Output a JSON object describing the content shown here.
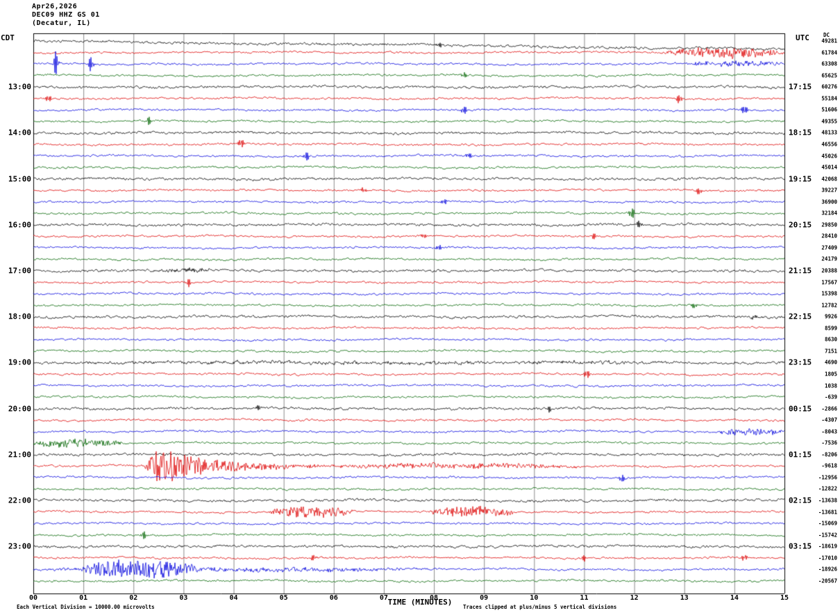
{
  "header": {
    "date": "Apr26,2026",
    "station": "DEC09 HHZ GS 01",
    "location": "(Decatur, IL)"
  },
  "axis": {
    "left_tz": "CDT",
    "right_tz": "UTC",
    "dc_header": "DC",
    "x_label": "TIME (MINUTES)"
  },
  "footer": {
    "left": "Each Vertical Division = 10000.00 microvolts",
    "right": "Traces clipped at plus/minus 5 vertical divisions"
  },
  "chart_data": {
    "type": "line",
    "title": "Helicorder seismogram DEC09 HHZ GS 01 (Decatur, IL)",
    "x_range_minutes": [
      0,
      15
    ],
    "minutes_per_row": 15,
    "rows": 48,
    "trace_colors_cycle": [
      "#000000",
      "#dd0000",
      "#0000dd",
      "#006400"
    ],
    "x_ticks": [
      "00",
      "01",
      "02",
      "03",
      "04",
      "05",
      "06",
      "07",
      "08",
      "09",
      "10",
      "11",
      "12",
      "13",
      "14",
      "15"
    ],
    "left_time_labels": [
      {
        "row": 4,
        "label": "13:00"
      },
      {
        "row": 8,
        "label": "14:00"
      },
      {
        "row": 12,
        "label": "15:00"
      },
      {
        "row": 16,
        "label": "16:00"
      },
      {
        "row": 20,
        "label": "17:00"
      },
      {
        "row": 24,
        "label": "18:00"
      },
      {
        "row": 28,
        "label": "19:00"
      },
      {
        "row": 32,
        "label": "20:00"
      },
      {
        "row": 36,
        "label": "21:00"
      },
      {
        "row": 40,
        "label": "22:00"
      },
      {
        "row": 44,
        "label": "23:00"
      }
    ],
    "right_time_labels": [
      {
        "row": 4,
        "label": "17:15"
      },
      {
        "row": 8,
        "label": "18:15"
      },
      {
        "row": 12,
        "label": "19:15"
      },
      {
        "row": 16,
        "label": "20:15"
      },
      {
        "row": 20,
        "label": "21:15"
      },
      {
        "row": 24,
        "label": "22:15"
      },
      {
        "row": 28,
        "label": "23:15"
      },
      {
        "row": 32,
        "label": "00:15"
      },
      {
        "row": 36,
        "label": "01:15"
      },
      {
        "row": 40,
        "label": "02:15"
      },
      {
        "row": 44,
        "label": "03:15"
      }
    ],
    "dc_values": [
      49281,
      61784,
      63308,
      65625,
      60276,
      55184,
      51606,
      49355,
      48133,
      46556,
      45026,
      45014,
      42068,
      39227,
      36900,
      32184,
      29850,
      28410,
      27409,
      24179,
      20388,
      17567,
      15398,
      12782,
      9926,
      8599,
      8630,
      7151,
      4690,
      1805,
      1038,
      -639,
      -2866,
      -4307,
      -8043,
      -7536,
      -8206,
      -9618,
      -12956,
      -12822,
      -13638,
      -13681,
      -15069,
      -15742,
      -18619,
      -17010,
      -18926,
      -20567
    ],
    "events": {
      "bursts": [
        {
          "row": 1,
          "start": 12.6,
          "end": 15,
          "amp": 7
        },
        {
          "row": 2,
          "start": 12.9,
          "end": 15,
          "amp": 3.5
        },
        {
          "row": 20,
          "start": 2.4,
          "end": 3.6,
          "amp": 2.5
        },
        {
          "row": 28,
          "start": 0,
          "end": 15,
          "amp": 1.4
        },
        {
          "row": 34,
          "start": 13.6,
          "end": 15,
          "amp": 5
        },
        {
          "row": 35,
          "start": 0,
          "end": 1.8,
          "amp": 6
        },
        {
          "row": 37,
          "start": 2.2,
          "end": 5.8,
          "amp": 26,
          "decay": true
        },
        {
          "row": 37,
          "start": 5.8,
          "end": 11,
          "amp": 3.5
        },
        {
          "row": 41,
          "start": 4.7,
          "end": 6.4,
          "amp": 8
        },
        {
          "row": 41,
          "start": 7.9,
          "end": 9.6,
          "amp": 8
        },
        {
          "row": 46,
          "start": 0,
          "end": 8,
          "amp": 2.5
        },
        {
          "row": 46,
          "start": 0.9,
          "end": 3.4,
          "amp": 13
        }
      ],
      "spikes": [
        {
          "row": 0,
          "min": 8.1,
          "amp": 3
        },
        {
          "row": 2,
          "min": 0.45,
          "amp": 12
        },
        {
          "row": 2,
          "min": 1.15,
          "amp": 7
        },
        {
          "row": 3,
          "min": 8.6,
          "amp": 3
        },
        {
          "row": 5,
          "min": 0.3,
          "amp": 4
        },
        {
          "row": 5,
          "min": 12.9,
          "amp": 5
        },
        {
          "row": 6,
          "min": 8.6,
          "amp": 4
        },
        {
          "row": 6,
          "min": 14.2,
          "amp": 5
        },
        {
          "row": 7,
          "min": 2.3,
          "amp": 4
        },
        {
          "row": 9,
          "min": 4.15,
          "amp": 5
        },
        {
          "row": 10,
          "min": 5.45,
          "amp": 5
        },
        {
          "row": 10,
          "min": 8.7,
          "amp": 3
        },
        {
          "row": 13,
          "min": 6.6,
          "amp": 3
        },
        {
          "row": 13,
          "min": 13.3,
          "amp": 4
        },
        {
          "row": 14,
          "min": 8.2,
          "amp": 3
        },
        {
          "row": 15,
          "min": 11.95,
          "amp": 6
        },
        {
          "row": 16,
          "min": 12.1,
          "amp": 4
        },
        {
          "row": 17,
          "min": 7.8,
          "amp": 3
        },
        {
          "row": 17,
          "min": 11.2,
          "amp": 3
        },
        {
          "row": 18,
          "min": 8.1,
          "amp": 3
        },
        {
          "row": 21,
          "min": 3.1,
          "amp": 4
        },
        {
          "row": 23,
          "min": 13.2,
          "amp": 3
        },
        {
          "row": 24,
          "min": 14.4,
          "amp": 3
        },
        {
          "row": 29,
          "min": 11.05,
          "amp": 5
        },
        {
          "row": 32,
          "min": 4.5,
          "amp": 3
        },
        {
          "row": 32,
          "min": 10.3,
          "amp": 3
        },
        {
          "row": 38,
          "min": 11.75,
          "amp": 4
        },
        {
          "row": 43,
          "min": 2.2,
          "amp": 4
        },
        {
          "row": 45,
          "min": 5.6,
          "amp": 3
        },
        {
          "row": 45,
          "min": 11.0,
          "amp": 3
        },
        {
          "row": 45,
          "min": 14.2,
          "amp": 4
        }
      ],
      "drifts": [
        {
          "row": 0,
          "px": 12
        }
      ]
    }
  }
}
